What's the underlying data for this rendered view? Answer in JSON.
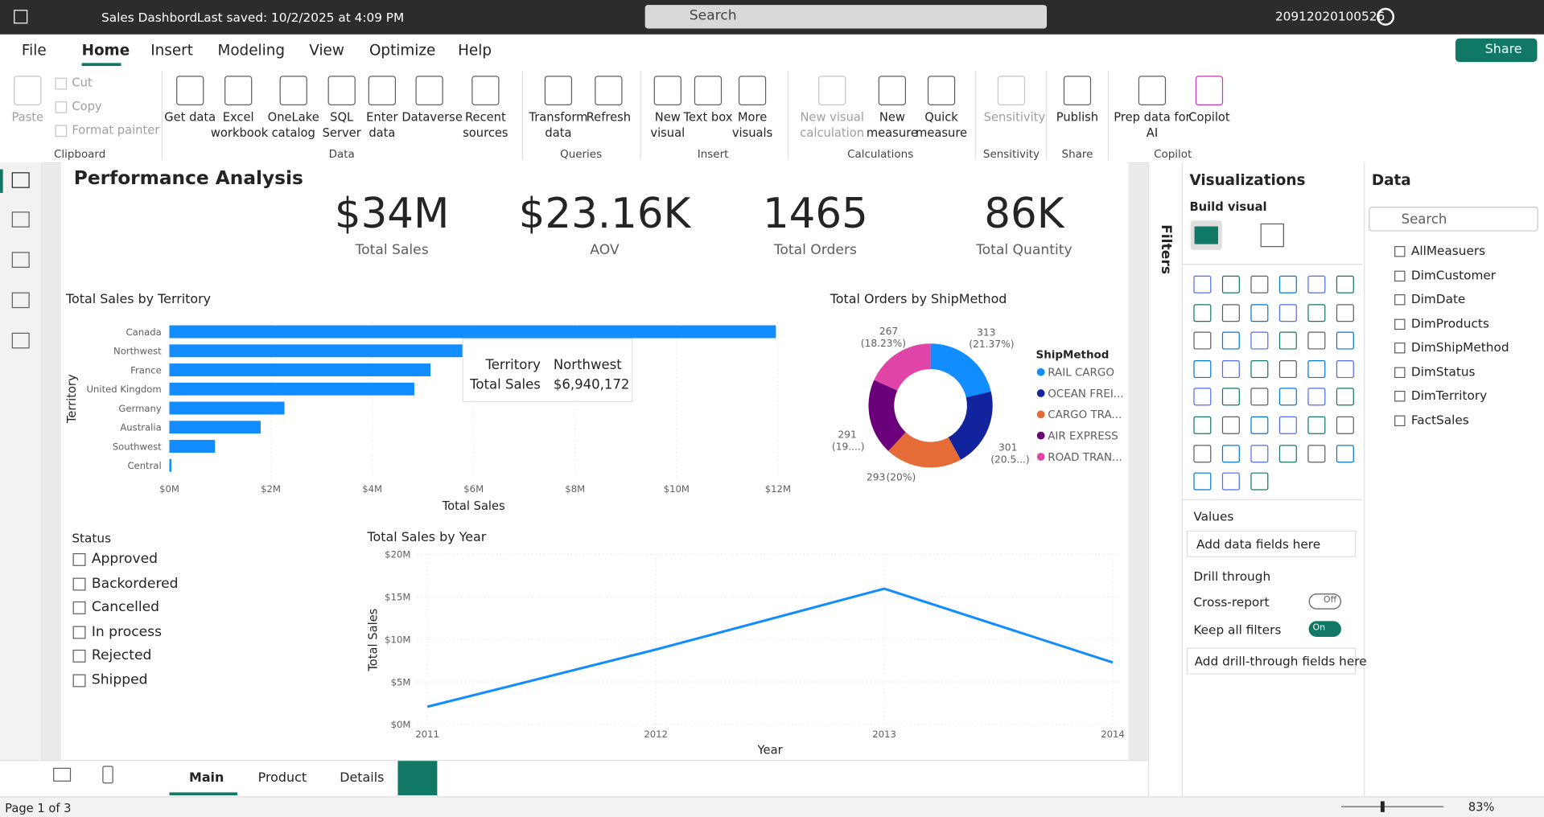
{
  "titlebar": {
    "file_title": "Sales Dashbord",
    "saved": "Last saved: 10/2/2025 at 4:09 PM",
    "search": "Search",
    "user": "20912020100526"
  },
  "menu": {
    "tabs": [
      "File",
      "Home",
      "Insert",
      "Modeling",
      "View",
      "Optimize",
      "Help"
    ],
    "share": "Share"
  },
  "ribbon": {
    "groups": [
      {
        "label": "Clipboard",
        "buttons": [
          "Paste",
          "Cut",
          "Copy",
          "Format painter"
        ]
      },
      {
        "label": "Data",
        "buttons": [
          "Get data",
          "Excel workbook",
          "OneLake catalog",
          "SQL Server",
          "Enter data",
          "Dataverse",
          "Recent sources"
        ]
      },
      {
        "label": "Queries",
        "buttons": [
          "Transform data",
          "Refresh"
        ]
      },
      {
        "label": "Insert",
        "buttons": [
          "New visual",
          "Text box",
          "More visuals"
        ]
      },
      {
        "label": "Calculations",
        "buttons": [
          "New visual calculation",
          "New measure",
          "Quick measure"
        ]
      },
      {
        "label": "Sensitivity",
        "buttons": [
          "Sensitivity"
        ]
      },
      {
        "label": "Share",
        "buttons": [
          "Publish"
        ]
      },
      {
        "label": "Copilot",
        "buttons": [
          "Prep data for AI",
          "Copilot"
        ]
      }
    ]
  },
  "report": {
    "title": "Performance Analysis",
    "kpis": [
      {
        "value": "$34M",
        "label": "Total Sales"
      },
      {
        "value": "$23.16K",
        "label": "AOV"
      },
      {
        "value": "1465",
        "label": "Total Orders"
      },
      {
        "value": "86K",
        "label": "Total Quantity"
      }
    ],
    "slicer": {
      "title": "Status",
      "items": [
        "Approved",
        "Backordered",
        "Cancelled",
        "In process",
        "Rejected",
        "Shipped"
      ]
    }
  },
  "chart_data": [
    {
      "type": "hbar",
      "title": "Total Sales by Territory",
      "x_label": "Total Sales",
      "y_label": "Territory",
      "categories": [
        "Canada",
        "Northwest",
        "France",
        "United Kingdom",
        "Germany",
        "Australia",
        "Southwest",
        "Central"
      ],
      "values": [
        11960000,
        6940172,
        5150000,
        4830000,
        2270000,
        1800000,
        900000,
        40000
      ],
      "color": "#118dff",
      "xlim": [
        0,
        12000000
      ],
      "xticks": [
        {
          "value": 0,
          "label": "$0M"
        },
        {
          "value": 2000000,
          "label": "$2M"
        },
        {
          "value": 4000000,
          "label": "$4M"
        },
        {
          "value": 6000000,
          "label": "$6M"
        },
        {
          "value": 8000000,
          "label": "$8M"
        },
        {
          "value": 10000000,
          "label": "$10M"
        },
        {
          "value": 12000000,
          "label": "$12M"
        }
      ],
      "tooltip": {
        "field1": "Territory",
        "value1": "Northwest",
        "field2": "Total Sales",
        "value2": "$6,940,172"
      }
    },
    {
      "type": "donut",
      "title": "Total Orders by ShipMethod",
      "legend_title": "ShipMethod",
      "categories": [
        "RAIL CARGO",
        "OCEAN FREI...",
        "CARGO TRA...",
        "AIR EXPRESS",
        "ROAD TRAN..."
      ],
      "values": [
        313,
        301,
        293,
        291,
        267
      ],
      "percent_labels": [
        "(21.37%)",
        "(20.5...)",
        "(20%)",
        "(19....)",
        "(18.23%)"
      ],
      "colors": [
        "#118dff",
        "#12239e",
        "#e66c37",
        "#6b007b",
        "#e044a7"
      ],
      "legend": "right"
    },
    {
      "type": "line",
      "title": "Total Sales by Year",
      "x_label": "Year",
      "y_label": "Total Sales",
      "categories": [
        "2011",
        "2012",
        "2013",
        "2014"
      ],
      "values": [
        2080000,
        8800000,
        15950000,
        7280000
      ],
      "color": "#118dff",
      "ylim": [
        0,
        20000000
      ],
      "yticks": [
        {
          "value": 0,
          "label": "$0M"
        },
        {
          "value": 5000000,
          "label": "$5M"
        },
        {
          "value": 10000000,
          "label": "$10M"
        },
        {
          "value": 15000000,
          "label": "$15M"
        },
        {
          "value": 20000000,
          "label": "$20M"
        }
      ],
      "grid": true
    }
  ],
  "filters": {
    "label": "Filters"
  },
  "visualizations": {
    "title": "Visualizations",
    "build": "Build visual",
    "values": "Values",
    "add_fields": "Add data fields here",
    "drill": "Drill through",
    "cross": "Cross-report",
    "off": "Off",
    "keep": "Keep all filters",
    "on": "On",
    "add_drill": "Add drill-through fields here"
  },
  "data_pane": {
    "title": "Data",
    "search": "Search",
    "tables": [
      "AllMeasuers",
      "DimCustomer",
      "DimDate",
      "DimProducts",
      "DimShipMethod",
      "DimStatus",
      "DimTerritory",
      "FactSales"
    ]
  },
  "pages": {
    "tabs": [
      "Main",
      "Product",
      "Details"
    ],
    "status": "Page 1 of 3",
    "zoom": "83%"
  }
}
